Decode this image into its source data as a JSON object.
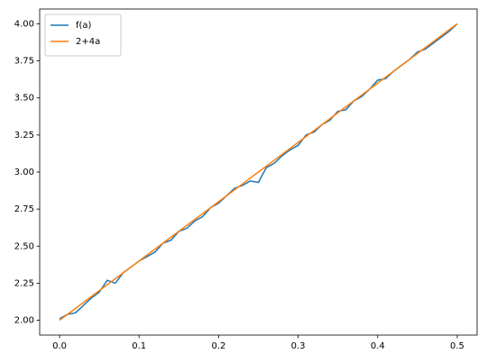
{
  "chart_data": {
    "type": "line",
    "x": [
      0,
      0.01,
      0.02,
      0.03,
      0.04,
      0.05,
      0.06,
      0.07,
      0.08,
      0.09,
      0.1,
      0.11,
      0.12,
      0.13,
      0.14,
      0.15,
      0.16,
      0.17,
      0.18,
      0.19,
      0.2,
      0.21,
      0.22,
      0.23,
      0.24,
      0.25,
      0.26,
      0.27,
      0.28,
      0.29,
      0.3,
      0.31,
      0.32,
      0.33,
      0.34,
      0.35,
      0.36,
      0.37,
      0.38,
      0.39,
      0.4,
      0.41,
      0.42,
      0.43,
      0.44,
      0.45,
      0.46,
      0.47,
      0.48,
      0.49,
      0.5
    ],
    "series": [
      {
        "name": "f(a)",
        "color": "#1f77b4",
        "values": [
          2.01,
          2.04,
          2.05,
          2.1,
          2.15,
          2.19,
          2.27,
          2.25,
          2.32,
          2.36,
          2.4,
          2.43,
          2.46,
          2.52,
          2.54,
          2.6,
          2.62,
          2.67,
          2.7,
          2.76,
          2.79,
          2.84,
          2.89,
          2.91,
          2.94,
          2.93,
          3.03,
          3.06,
          3.11,
          3.15,
          3.18,
          3.25,
          3.27,
          3.32,
          3.35,
          3.41,
          3.42,
          3.48,
          3.51,
          3.56,
          3.62,
          3.63,
          3.68,
          3.72,
          3.76,
          3.81,
          3.83,
          3.87,
          3.91,
          3.95,
          4.0
        ]
      },
      {
        "name": "2+4a",
        "color": "#ff7f0e",
        "values": [
          2.0,
          2.04,
          2.08,
          2.12,
          2.16,
          2.2,
          2.24,
          2.28,
          2.32,
          2.36,
          2.4,
          2.44,
          2.48,
          2.52,
          2.56,
          2.6,
          2.64,
          2.68,
          2.72,
          2.76,
          2.8,
          2.84,
          2.88,
          2.92,
          2.96,
          3.0,
          3.04,
          3.08,
          3.12,
          3.16,
          3.2,
          3.24,
          3.28,
          3.32,
          3.36,
          3.4,
          3.44,
          3.48,
          3.52,
          3.56,
          3.6,
          3.64,
          3.68,
          3.72,
          3.76,
          3.8,
          3.84,
          3.88,
          3.92,
          3.96,
          4.0
        ]
      }
    ],
    "xlim": [
      -0.025,
      0.525
    ],
    "ylim": [
      1.9,
      4.1
    ],
    "xticks": [
      {
        "value": 0,
        "label": "0.0"
      },
      {
        "value": 0.1,
        "label": "0.1"
      },
      {
        "value": 0.2,
        "label": "0.2"
      },
      {
        "value": 0.3,
        "label": "0.3"
      },
      {
        "value": 0.4,
        "label": "0.4"
      },
      {
        "value": 0.5,
        "label": "0.5"
      }
    ],
    "yticks": [
      {
        "value": 2,
        "label": "2.00"
      },
      {
        "value": 2.25,
        "label": "2.25"
      },
      {
        "value": 2.5,
        "label": "2.50"
      },
      {
        "value": 2.75,
        "label": "2.75"
      },
      {
        "value": 3,
        "label": "3.00"
      },
      {
        "value": 3.25,
        "label": "3.25"
      },
      {
        "value": 3.5,
        "label": "3.50"
      },
      {
        "value": 3.75,
        "label": "3.75"
      },
      {
        "value": 4,
        "label": "4.00"
      }
    ],
    "grid": false,
    "legend": "upper-left"
  }
}
